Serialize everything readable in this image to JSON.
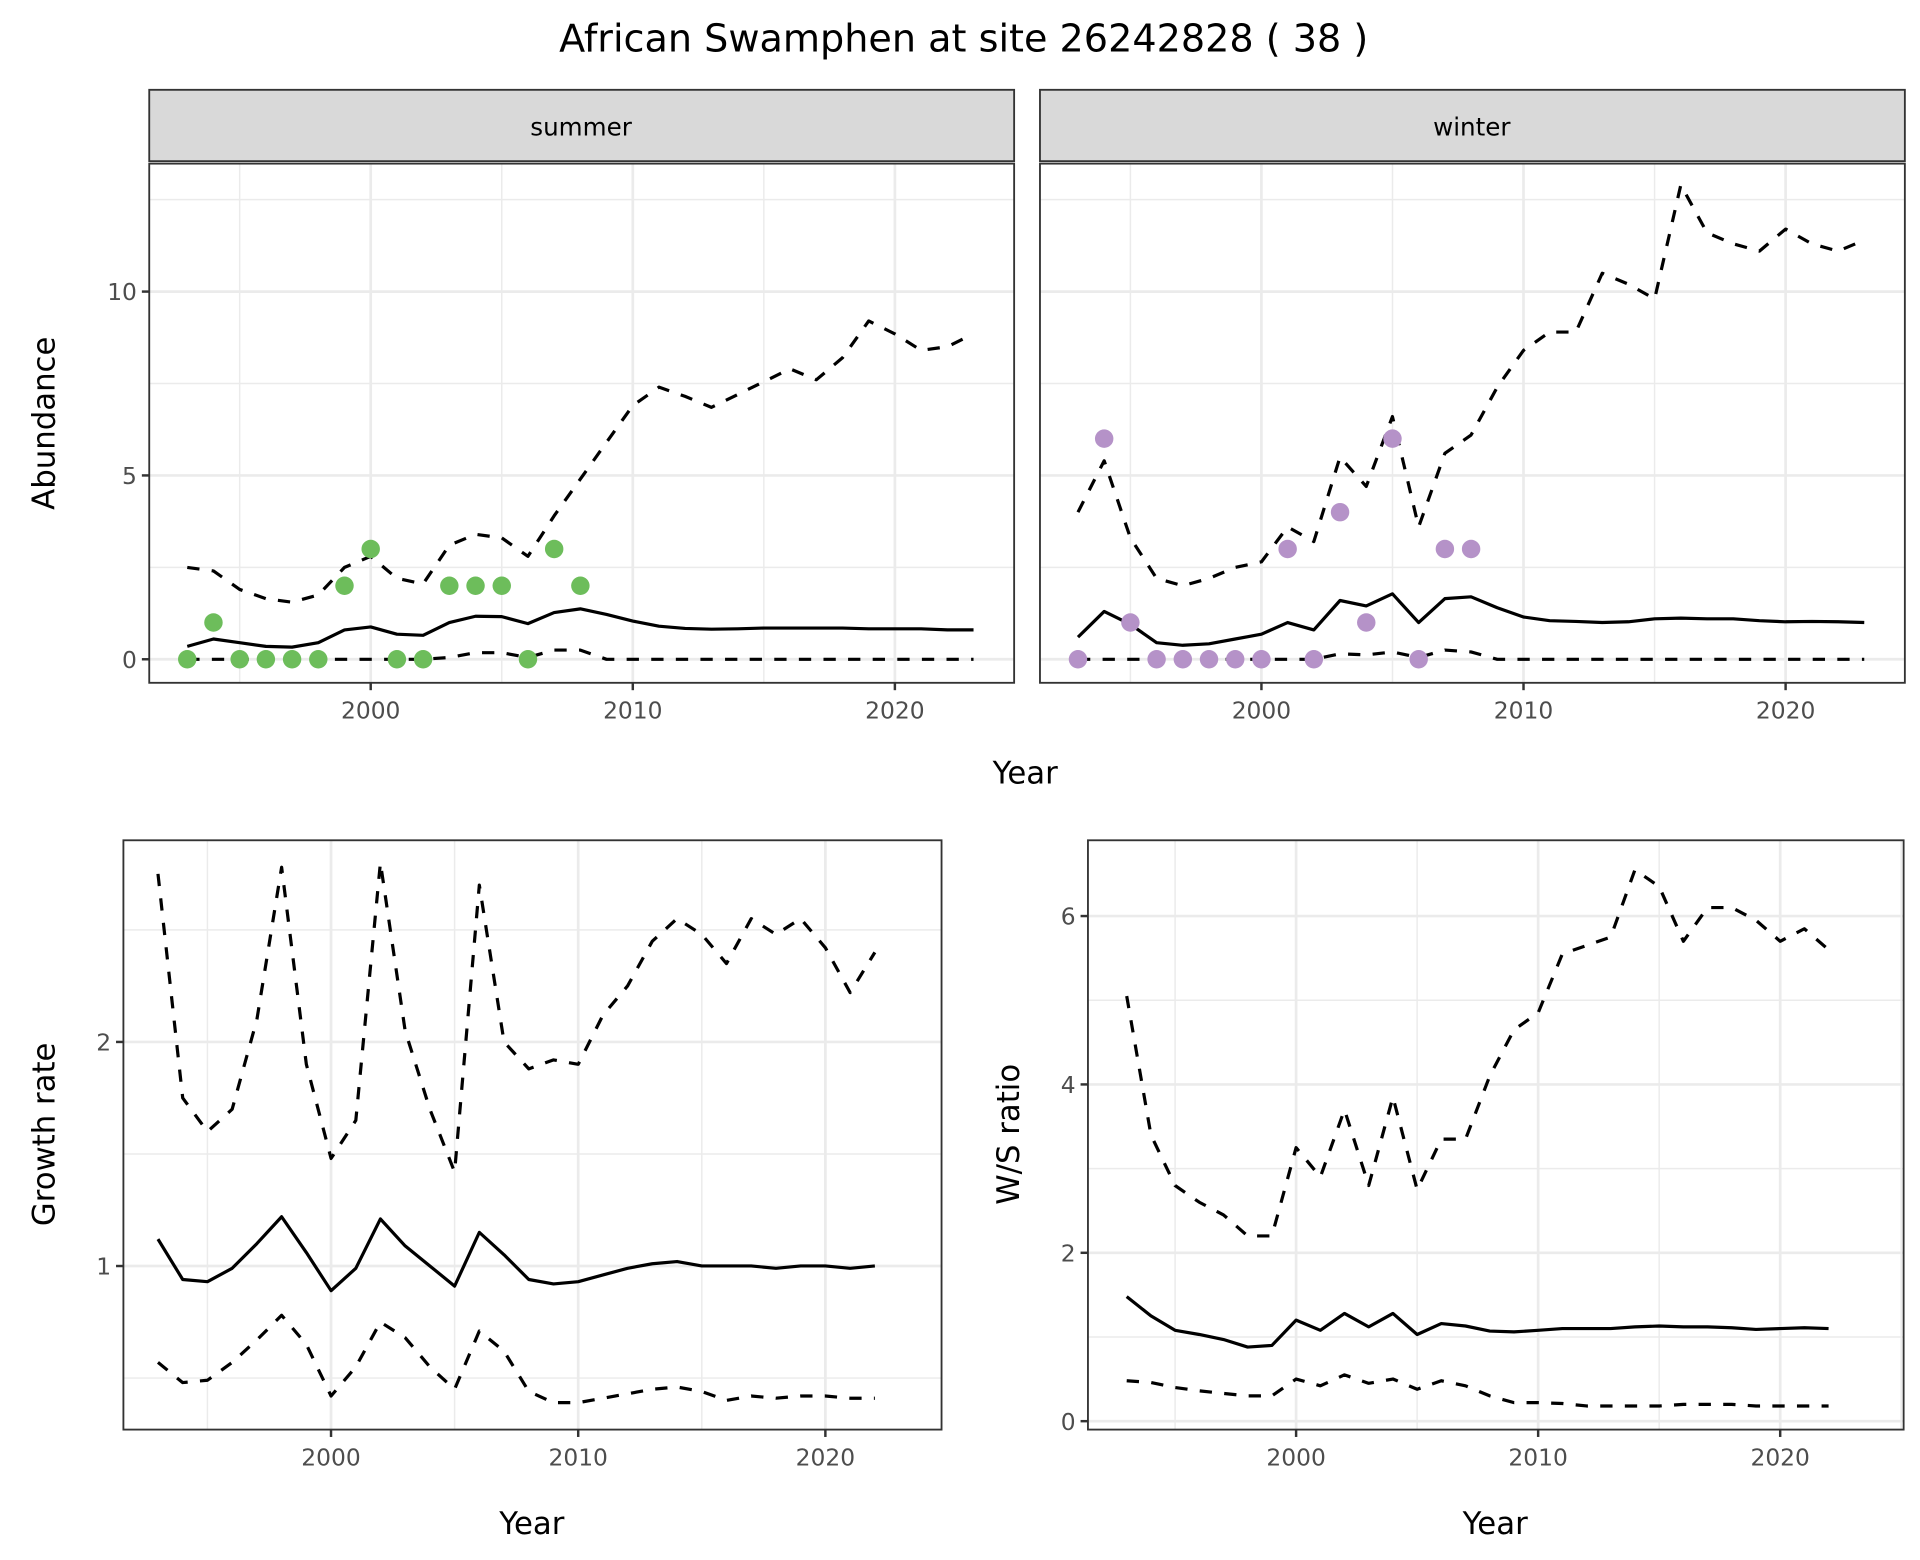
{
  "title": "African Swamphen at site 26242828 ( 38 )",
  "colors": {
    "summer": "#6dbd5b",
    "winter": "#b592c8",
    "line": "#000000",
    "strip_bg": "#d9d9d9",
    "grid": "#ebebeb"
  },
  "chart_data": [
    {
      "type": "line",
      "facet": "summer",
      "xlabel": "Year",
      "ylabel": "Abundance",
      "xlim": [
        1991.55,
        2024.55
      ],
      "ylim": [
        -0.64,
        13.48
      ],
      "xticks": [
        2000,
        2010,
        2020
      ],
      "yticks": [
        0,
        5,
        10
      ],
      "grid": true,
      "x": [
        1993,
        1994,
        1995,
        1996,
        1997,
        1998,
        1999,
        2000,
        2001,
        2002,
        2003,
        2004,
        2005,
        2006,
        2007,
        2008,
        2009,
        2010,
        2011,
        2012,
        2013,
        2014,
        2015,
        2016,
        2017,
        2018,
        2019,
        2020,
        2021,
        2022,
        2023
      ],
      "series": [
        {
          "style": "dashed",
          "values": [
            2.5,
            2.4,
            1.9,
            1.65,
            1.55,
            1.75,
            2.5,
            2.8,
            2.2,
            2.05,
            3.1,
            3.4,
            3.3,
            2.8,
            3.9,
            4.9,
            5.9,
            6.9,
            7.4,
            7.15,
            6.85,
            7.2,
            7.55,
            7.9,
            7.6,
            8.2,
            9.2,
            8.85,
            8.4,
            8.5,
            8.85
          ]
        },
        {
          "style": "solid",
          "values": [
            0.35,
            0.55,
            0.45,
            0.35,
            0.33,
            0.45,
            0.8,
            0.88,
            0.68,
            0.65,
            1.0,
            1.17,
            1.16,
            0.97,
            1.27,
            1.37,
            1.22,
            1.04,
            0.9,
            0.84,
            0.82,
            0.83,
            0.85,
            0.85,
            0.85,
            0.85,
            0.83,
            0.83,
            0.83,
            0.8,
            0.8
          ]
        },
        {
          "style": "dashed",
          "values": [
            0,
            0,
            0,
            0,
            0,
            0,
            0,
            0,
            0,
            0,
            0.05,
            0.18,
            0.18,
            0.05,
            0.25,
            0.25,
            0,
            0,
            0,
            0,
            0,
            0,
            0,
            0,
            0,
            0,
            0,
            0,
            0,
            0,
            0
          ]
        }
      ],
      "points": {
        "x": [
          1993,
          1994,
          1995,
          1996,
          1997,
          1998,
          1999,
          2000,
          2001,
          2002,
          2003,
          2004,
          2005,
          2006,
          2007,
          2008
        ],
        "y": [
          0,
          1,
          0,
          0,
          0,
          0,
          2,
          3,
          0,
          0,
          2,
          2,
          2,
          0,
          3,
          2
        ]
      }
    },
    {
      "type": "line",
      "facet": "winter",
      "xlabel": "Year",
      "ylabel": "Abundance",
      "xlim": [
        1991.55,
        2024.55
      ],
      "ylim": [
        -0.64,
        13.48
      ],
      "xticks": [
        2000,
        2010,
        2020
      ],
      "yticks": [
        0,
        5,
        10
      ],
      "grid": true,
      "x": [
        1993,
        1994,
        1995,
        1996,
        1997,
        1998,
        1999,
        2000,
        2001,
        2002,
        2003,
        2004,
        2005,
        2006,
        2007,
        2008,
        2009,
        2010,
        2011,
        2012,
        2013,
        2014,
        2015,
        2016,
        2017,
        2018,
        2019,
        2020,
        2021,
        2022,
        2023
      ],
      "series": [
        {
          "style": "dashed",
          "values": [
            4.0,
            5.4,
            3.3,
            2.2,
            2.0,
            2.2,
            2.5,
            2.65,
            3.6,
            3.2,
            5.5,
            4.7,
            6.6,
            3.6,
            5.6,
            6.1,
            7.4,
            8.4,
            8.9,
            8.9,
            10.5,
            10.2,
            9.8,
            12.9,
            11.6,
            11.3,
            11.1,
            11.7,
            11.3,
            11.1,
            11.4
          ]
        },
        {
          "style": "solid",
          "values": [
            0.6,
            1.3,
            0.95,
            0.45,
            0.38,
            0.42,
            0.55,
            0.68,
            1.0,
            0.8,
            1.6,
            1.45,
            1.78,
            1.0,
            1.65,
            1.7,
            1.4,
            1.15,
            1.05,
            1.03,
            1.0,
            1.02,
            1.1,
            1.12,
            1.1,
            1.1,
            1.05,
            1.02,
            1.03,
            1.02,
            1.0
          ]
        },
        {
          "style": "dashed",
          "values": [
            0,
            0,
            0,
            0,
            0,
            0,
            0,
            0,
            0,
            0,
            0.15,
            0.12,
            0.2,
            0.05,
            0.25,
            0.2,
            0,
            0,
            0,
            0,
            0,
            0,
            0,
            0,
            0,
            0,
            0,
            0,
            0,
            0,
            0
          ]
        }
      ],
      "points": {
        "x": [
          1993,
          1994,
          1995,
          1996,
          1997,
          1998,
          1999,
          2000,
          2001,
          2002,
          2003,
          2004,
          2005,
          2006,
          2007,
          2008
        ],
        "y": [
          0,
          6,
          1,
          0,
          0,
          0,
          0,
          0,
          3,
          0,
          4,
          1,
          6,
          0,
          3,
          3
        ]
      }
    },
    {
      "type": "line",
      "xlabel": "Year",
      "ylabel": "Growth rate",
      "xlim": [
        1991.6,
        2024.7
      ],
      "ylim": [
        0.27,
        2.9
      ],
      "xticks": [
        2000,
        2010,
        2020
      ],
      "yticks": [
        1,
        2
      ],
      "grid": true,
      "x": [
        1993,
        1994,
        1995,
        1996,
        1997,
        1998,
        1999,
        2000,
        2001,
        2002,
        2003,
        2004,
        2005,
        2006,
        2007,
        2008,
        2009,
        2010,
        2011,
        2012,
        2013,
        2014,
        2015,
        2016,
        2017,
        2018,
        2019,
        2020,
        2021,
        2022
      ],
      "series": [
        {
          "style": "dashed",
          "values": [
            2.75,
            1.75,
            1.6,
            1.7,
            2.1,
            2.78,
            1.9,
            1.48,
            1.65,
            2.8,
            2.05,
            1.7,
            1.42,
            2.7,
            2.0,
            1.88,
            1.92,
            1.9,
            2.12,
            2.25,
            2.45,
            2.55,
            2.48,
            2.35,
            2.55,
            2.48,
            2.55,
            2.42,
            2.22,
            2.4
          ]
        },
        {
          "style": "solid",
          "values": [
            1.12,
            0.94,
            0.93,
            0.99,
            1.1,
            1.22,
            1.06,
            0.89,
            0.99,
            1.21,
            1.09,
            1.0,
            0.91,
            1.15,
            1.05,
            0.94,
            0.92,
            0.93,
            0.96,
            0.99,
            1.01,
            1.02,
            1.0,
            1.0,
            1.0,
            0.99,
            1.0,
            1.0,
            0.99,
            1.0
          ]
        },
        {
          "style": "dashed",
          "values": [
            0.57,
            0.48,
            0.49,
            0.57,
            0.67,
            0.78,
            0.65,
            0.42,
            0.55,
            0.75,
            0.68,
            0.55,
            0.45,
            0.71,
            0.62,
            0.44,
            0.39,
            0.39,
            0.41,
            0.43,
            0.45,
            0.46,
            0.44,
            0.4,
            0.42,
            0.41,
            0.42,
            0.42,
            0.41,
            0.41
          ]
        }
      ]
    },
    {
      "type": "line",
      "xlabel": "Year",
      "ylabel": "W/S ratio",
      "xlim": [
        1991.4,
        2025.1
      ],
      "ylim": [
        -0.1,
        6.9
      ],
      "xticks": [
        2000,
        2010,
        2020
      ],
      "yticks": [
        0,
        2,
        4,
        6
      ],
      "grid": true,
      "x": [
        1993,
        1994,
        1995,
        1996,
        1997,
        1998,
        1999,
        2000,
        2001,
        2002,
        2003,
        2004,
        2005,
        2006,
        2007,
        2008,
        2009,
        2010,
        2011,
        2012,
        2013,
        2014,
        2015,
        2016,
        2017,
        2018,
        2019,
        2020,
        2021,
        2022
      ],
      "series": [
        {
          "style": "dashed",
          "values": [
            5.05,
            3.4,
            2.8,
            2.6,
            2.45,
            2.2,
            2.2,
            3.25,
            2.9,
            3.7,
            2.8,
            3.85,
            2.75,
            3.35,
            3.35,
            4.1,
            4.65,
            4.85,
            5.55,
            5.65,
            5.75,
            6.55,
            6.35,
            5.7,
            6.1,
            6.1,
            5.95,
            5.7,
            5.85,
            5.6
          ]
        },
        {
          "style": "solid",
          "values": [
            1.48,
            1.25,
            1.08,
            1.03,
            0.97,
            0.88,
            0.9,
            1.2,
            1.08,
            1.28,
            1.12,
            1.28,
            1.03,
            1.16,
            1.13,
            1.07,
            1.06,
            1.08,
            1.1,
            1.1,
            1.1,
            1.12,
            1.13,
            1.12,
            1.12,
            1.11,
            1.09,
            1.1,
            1.11,
            1.1
          ]
        },
        {
          "style": "dashed",
          "values": [
            0.48,
            0.46,
            0.4,
            0.36,
            0.33,
            0.3,
            0.3,
            0.5,
            0.42,
            0.55,
            0.45,
            0.5,
            0.38,
            0.48,
            0.42,
            0.3,
            0.22,
            0.22,
            0.21,
            0.18,
            0.18,
            0.18,
            0.18,
            0.2,
            0.2,
            0.2,
            0.18,
            0.18,
            0.18,
            0.18
          ]
        }
      ]
    }
  ]
}
